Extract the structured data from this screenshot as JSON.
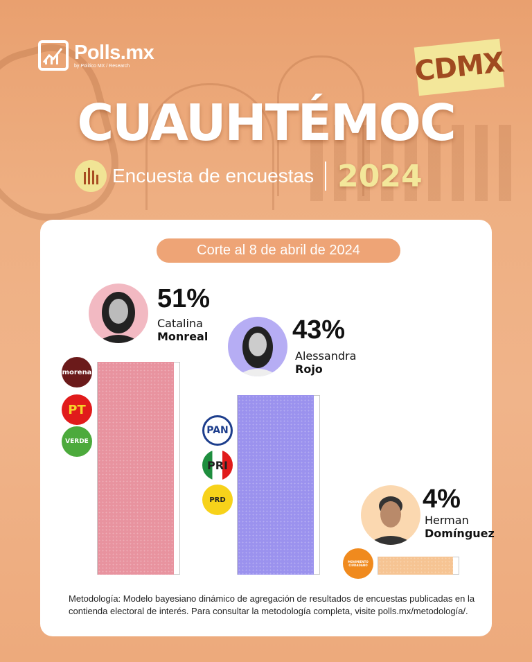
{
  "header": {
    "logo_name": "Polls.mx",
    "logo_sub": "by Politico MX / Research",
    "badge": "CDMX",
    "title": "CUAUHTÉMOC",
    "subtitle": "Encuesta de encuestas",
    "year": "2024"
  },
  "card": {
    "cutoff": "Corte al 8 de abril de 2024",
    "methodology": "Metodología: Modelo bayesiano dinámico de agregación de resultados de encuestas publicadas en la contienda electoral de interés. Para consultar la metodología completa, visite polls.mx/metodología/."
  },
  "colors": {
    "monreal": "#e8939f",
    "rojo": "#9b92ee",
    "dominguez": "#f6c493",
    "accent": "#eea476"
  },
  "chart_data": {
    "type": "bar",
    "title": "CUAUHTÉMOC",
    "categories": [
      "Catalina Monreal",
      "Alessandra Rojo",
      "Herman Domínguez"
    ],
    "values": [
      51,
      43,
      4
    ],
    "labels": [
      "51%",
      "43%",
      "4%"
    ],
    "candidates": [
      {
        "first": "Catalina",
        "last": "Monreal",
        "pct_label": "51%",
        "value": 51,
        "color": "#e8939f",
        "parties": [
          "morena",
          "PT",
          "VERDE"
        ]
      },
      {
        "first": "Alessandra",
        "last": "Rojo",
        "pct_label": "43%",
        "value": 43,
        "color": "#9b92ee",
        "parties": [
          "PAN",
          "PRI",
          "PRD"
        ]
      },
      {
        "first": "Herman",
        "last": "Domínguez",
        "pct_label": "4%",
        "value": 4,
        "color": "#f6c493",
        "parties": [
          "MOVIMIENTO CIUDADANO"
        ]
      }
    ],
    "ylim": [
      0,
      51
    ],
    "grid": false,
    "legend": "none"
  }
}
